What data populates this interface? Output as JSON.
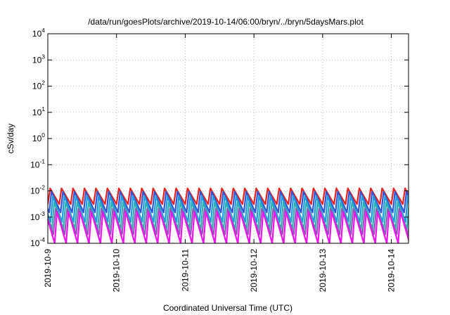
{
  "chart_data": {
    "type": "line",
    "title": "/data/run/goesPlots/archive/2019-10-14/06:00/bryn/../bryn/5daysMars.plot",
    "xlabel": "Coordinated Universal Time (UTC)",
    "ylabel": "cSv/day",
    "yscale": "log",
    "ylim": [
      0.0001,
      10000
    ],
    "y_ticks": [
      {
        "base": "10",
        "exp": "-4"
      },
      {
        "base": "10",
        "exp": "-3"
      },
      {
        "base": "10",
        "exp": "-2"
      },
      {
        "base": "10",
        "exp": "-1"
      },
      {
        "base": "10",
        "exp": "0"
      },
      {
        "base": "10",
        "exp": "1"
      },
      {
        "base": "10",
        "exp": "2"
      },
      {
        "base": "10",
        "exp": "3"
      },
      {
        "base": "10",
        "exp": "4"
      }
    ],
    "xlim": [
      "2019-10-09T00:00",
      "2019-10-14T06:00"
    ],
    "x_ticks": [
      "2019-10-9",
      "2019-10-10",
      "2019-10-11",
      "2019-10-12",
      "2019-10-13",
      "2019-10-14"
    ],
    "grid": true,
    "cycle_hours": 4,
    "series": [
      {
        "color": "#e8211c",
        "peak": 0.0125,
        "trough": 0.0031
      },
      {
        "color": "#2f55d4",
        "peak": 0.0094,
        "trough": 0.0015
      },
      {
        "color": "#1c9ae0",
        "peak": 0.0063,
        "trough": 0.00065
      },
      {
        "color": "#2fb0b0",
        "peak": 0.0036,
        "trough": 0.00035
      },
      {
        "color": "#8d5bb8",
        "peak": 0.0021,
        "trough": 0.00022
      },
      {
        "color": "#ee12ee",
        "peak": 0.0016,
        "trough": 0.0001
      }
    ]
  }
}
